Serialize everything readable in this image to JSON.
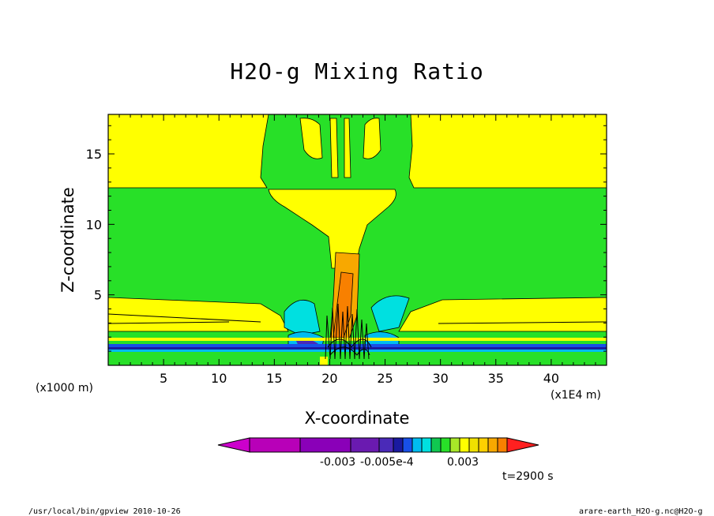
{
  "chart_data": {
    "type": "heatmap",
    "title": "H2O-g Mixing Ratio",
    "xlabel": "X-coordinate",
    "ylabel": "Z-coordinate",
    "x_unit_label": "(x1000 m)",
    "x_scale_label": "(x1E4 m)",
    "xlim": [
      0,
      45
    ],
    "ylim": [
      0,
      17.8
    ],
    "x_ticks": [
      5,
      10,
      15,
      20,
      25,
      30,
      35,
      40
    ],
    "y_ticks": [
      5,
      10,
      15
    ],
    "colorbar": {
      "colors": [
        "#cc00cc",
        "#b800b8",
        "#8a00b8",
        "#6a1ab0",
        "#4a2ab8",
        "#1a1aa0",
        "#1850e8",
        "#00bcf0",
        "#00e0e0",
        "#10c850",
        "#28e028",
        "#a8e828",
        "#ffff00",
        "#f0e000",
        "#ffd000",
        "#f8a800",
        "#f88000",
        "#ff2020"
      ],
      "labels": [
        "-0.003",
        "-0.005e-4",
        "0.003"
      ]
    },
    "time_label": "t=2900 s",
    "footer_left": "/usr/local/bin/gpview  2010-10-26",
    "footer_right": "arare-earth_H2O-g.nc@H2O-g"
  }
}
